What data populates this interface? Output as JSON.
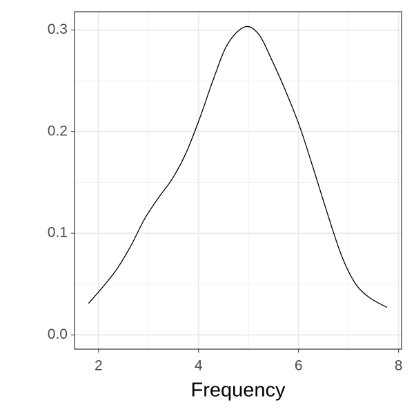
{
  "chart_data": {
    "type": "line",
    "x_label": "Frequency",
    "x": [
      1.8,
      2.1,
      2.37,
      2.65,
      2.92,
      3.2,
      3.48,
      3.75,
      4.03,
      4.3,
      4.58,
      4.92,
      5.2,
      5.47,
      5.75,
      6.03,
      6.3,
      6.58,
      6.86,
      7.13,
      7.41,
      7.77
    ],
    "series": [
      {
        "color": "#000000",
        "values": [
          0.031,
          0.048,
          0.065,
          0.088,
          0.114,
          0.135,
          0.154,
          0.179,
          0.214,
          0.252,
          0.286,
          0.303,
          0.296,
          0.27,
          0.239,
          0.204,
          0.163,
          0.119,
          0.078,
          0.051,
          0.037,
          0.027
        ]
      }
    ],
    "xlim": [
      1.52,
      8.06
    ],
    "ylim": [
      -0.014,
      0.318
    ],
    "xticks": [
      2,
      4,
      6,
      8
    ],
    "yticks": [
      {
        "value": 0,
        "label": "0.0"
      },
      0.1,
      0.2,
      0.3
    ],
    "x_minor_grid": [
      3,
      5,
      7
    ],
    "y_minor_grid": [
      0.05,
      0.15,
      0.25
    ],
    "grid": true
  }
}
